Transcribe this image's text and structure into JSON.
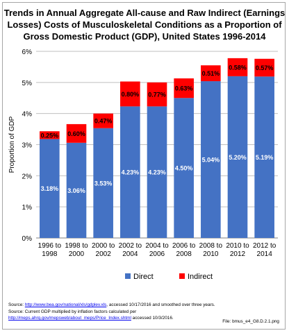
{
  "chart_data": {
    "type": "bar",
    "stacked": true,
    "title_lines": [
      "Trends in Annual Aggregate All-cause and Raw Indirect (Earnings",
      "Losses) Costs of Musculoskeletal Conditions as a Proportion of",
      "Gross Domestic Product (GDP), United States 1996-2014"
    ],
    "ylabel": "Proportion of GDP",
    "xlabel": "",
    "ylim": [
      0,
      6
    ],
    "yticks": [
      "0%",
      "1%",
      "2%",
      "3%",
      "4%",
      "5%",
      "6%"
    ],
    "grid": true,
    "legend_position": "bottom",
    "categories": [
      [
        "1996 to",
        "1998"
      ],
      [
        "1998 to",
        "2000"
      ],
      [
        "2000 to",
        "2002"
      ],
      [
        "2002 to",
        "2004"
      ],
      [
        "2004 to",
        "2006"
      ],
      [
        "2006 to",
        "2008"
      ],
      [
        "2008 to",
        "2010"
      ],
      [
        "2010 to",
        "2012"
      ],
      [
        "2012 to",
        "2014"
      ]
    ],
    "series": [
      {
        "name": "Direct",
        "color": "#4472c4",
        "values": [
          3.18,
          3.06,
          3.53,
          4.23,
          4.23,
          4.5,
          5.04,
          5.2,
          5.19
        ],
        "labels": [
          "3.18%",
          "3.06%",
          "3.53%",
          "4.23%",
          "4.23%",
          "4.50%",
          "5.04%",
          "5.20%",
          "5.19%"
        ]
      },
      {
        "name": "Indirect",
        "color": "#ff0000",
        "values": [
          0.25,
          0.6,
          0.47,
          0.8,
          0.77,
          0.63,
          0.51,
          0.58,
          0.57
        ],
        "labels": [
          "0.25%",
          "0.60%",
          "0.47%",
          "0.80%",
          "0.77%",
          "0.63%",
          "0.51%",
          "0.58%",
          "0.57%"
        ]
      }
    ]
  },
  "footer": {
    "line1_prefix": "Source:  ",
    "line1_link": "http://www.bea.gov/national/xls/gdplev.xls",
    "line1_suffix": ", accessed 10/17/2016 and smoothed over three years.",
    "line2": "Source: Current GDP multiplied by inflation factors calculated per",
    "line3_link": "http://meps.ahrq.gov/mepsweb/about_meps/Price_Index.shtml",
    "line3_suffix": " accessed 10/3/2016.",
    "file": "File:  bmus_e4_G8.D.2.1.png"
  }
}
